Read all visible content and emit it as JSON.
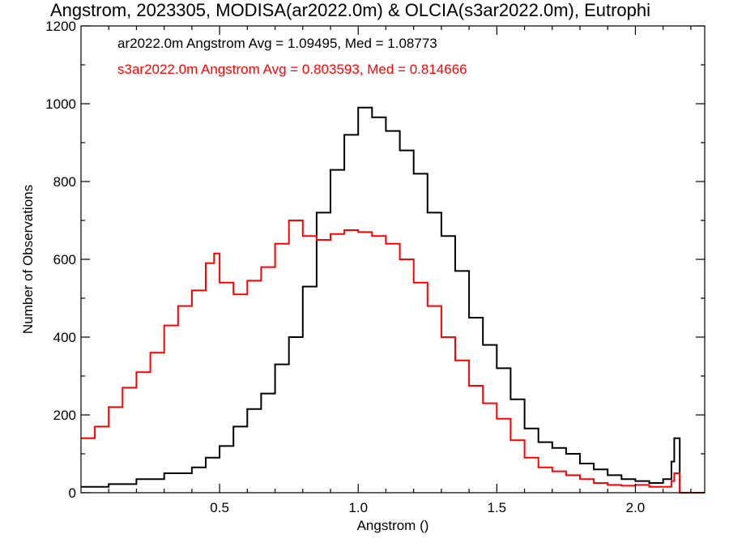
{
  "chart_data": {
    "type": "line",
    "title": "Angstrom, 2023305, MODISA(ar2022.0m) & OLCIA(s3ar2022.0m), Eutrophi",
    "xlabel": "Angstrom ()",
    "ylabel": "Number of Observations",
    "xlim": [
      0.0,
      2.25
    ],
    "ylim": [
      0,
      1200
    ],
    "xticks": [
      0.5,
      1.0,
      1.5,
      2.0
    ],
    "xtick_labels": [
      "0.5",
      "1.0",
      "1.5",
      "2.0"
    ],
    "yticks": [
      0,
      200,
      400,
      600,
      800,
      1000,
      1200
    ],
    "ytick_labels": [
      "0",
      "200",
      "400",
      "600",
      "800",
      "1000",
      "1200"
    ],
    "step_style": "histogram",
    "grid": false,
    "legend_placement": "top-left",
    "series": [
      {
        "name": "ar2022.0m",
        "color": "#000000",
        "legend_text": "ar2022.0m Angstrom Avg = 1.09495, Med = 1.08773",
        "x": [
          0.0,
          0.1,
          0.2,
          0.3,
          0.4,
          0.45,
          0.5,
          0.55,
          0.6,
          0.65,
          0.7,
          0.75,
          0.8,
          0.85,
          0.9,
          0.95,
          1.0,
          1.05,
          1.1,
          1.15,
          1.2,
          1.25,
          1.3,
          1.35,
          1.4,
          1.45,
          1.5,
          1.55,
          1.6,
          1.65,
          1.7,
          1.75,
          1.8,
          1.85,
          1.9,
          1.95,
          2.0,
          2.05,
          2.1,
          2.13,
          2.14,
          2.16,
          2.25
        ],
        "y": [
          15,
          22,
          35,
          50,
          65,
          90,
          120,
          170,
          215,
          255,
          330,
          400,
          530,
          720,
          830,
          920,
          990,
          965,
          930,
          880,
          820,
          720,
          660,
          570,
          450,
          380,
          320,
          240,
          165,
          130,
          115,
          100,
          75,
          60,
          45,
          35,
          30,
          25,
          35,
          80,
          140,
          0,
          0
        ]
      },
      {
        "name": "s3ar2022.0m",
        "color": "#ff0000",
        "legend_text": "s3ar2022.0m Angstrom Avg = 0.803593, Med = 0.814666",
        "x": [
          0.0,
          0.05,
          0.1,
          0.15,
          0.2,
          0.25,
          0.3,
          0.35,
          0.4,
          0.45,
          0.48,
          0.5,
          0.55,
          0.6,
          0.65,
          0.7,
          0.75,
          0.8,
          0.85,
          0.9,
          0.95,
          1.0,
          1.05,
          1.1,
          1.15,
          1.2,
          1.25,
          1.3,
          1.35,
          1.4,
          1.45,
          1.5,
          1.55,
          1.6,
          1.65,
          1.7,
          1.75,
          1.8,
          1.85,
          1.9,
          1.95,
          2.0,
          2.05,
          2.1,
          2.13,
          2.14,
          2.16,
          2.25
        ],
        "y": [
          140,
          170,
          220,
          270,
          310,
          360,
          430,
          480,
          520,
          590,
          615,
          540,
          510,
          545,
          580,
          640,
          700,
          660,
          650,
          665,
          675,
          670,
          660,
          640,
          600,
          540,
          480,
          400,
          340,
          275,
          230,
          190,
          135,
          90,
          65,
          55,
          45,
          35,
          25,
          20,
          18,
          20,
          15,
          15,
          30,
          50,
          0,
          0
        ]
      }
    ]
  }
}
